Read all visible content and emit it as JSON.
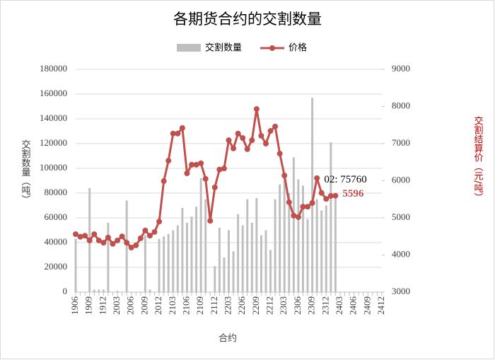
{
  "chart_data": {
    "type": "bar-line",
    "title": "各期货合约的交割数量",
    "x_label": "合约",
    "y_label": "交割数量（吨）",
    "y2_label": "交割结算价（元/吨）",
    "categories": [
      "1906",
      null,
      null,
      "1909",
      null,
      null,
      "1912",
      null,
      null,
      "2003",
      null,
      null,
      "2006",
      null,
      null,
      "2009",
      null,
      null,
      "2012",
      null,
      null,
      "2103",
      null,
      null,
      "2106",
      null,
      null,
      "2109",
      null,
      null,
      "2112",
      null,
      null,
      "2203",
      null,
      null,
      "2206",
      null,
      null,
      "2209",
      null,
      null,
      "2212",
      null,
      null,
      "2303",
      null,
      null,
      "2306",
      null,
      null,
      "2309",
      null,
      null,
      "2312",
      null,
      null,
      "2403",
      null,
      null,
      "2406",
      null,
      null,
      "2409",
      null,
      null,
      "2412"
    ],
    "series": [
      {
        "name": "交割数量",
        "kind": "bar",
        "color": "#bfbfbf",
        "values": [
          43000,
          null,
          null,
          84000,
          2000,
          2000,
          2000,
          56000,
          null,
          1000,
          null,
          74000,
          null,
          null,
          null,
          46000,
          2000,
          null,
          43000,
          45000,
          47000,
          50000,
          54000,
          68000,
          56000,
          61000,
          69000,
          92000,
          75000,
          null,
          21000,
          52000,
          28000,
          50000,
          33000,
          63000,
          54000,
          75000,
          56000,
          76000,
          46000,
          50000,
          34000,
          75000,
          87000,
          94000,
          80000,
          109000,
          91000,
          86000,
          59000,
          157000,
          75000,
          66000,
          70000,
          121000,
          75760,
          null,
          null,
          null,
          null,
          null,
          null,
          null,
          null,
          null,
          null
        ],
        "value_labels": [
          null,
          null,
          null,
          null,
          null,
          null,
          null,
          null,
          null,
          null,
          null,
          null,
          null,
          null,
          null,
          null,
          null,
          null,
          null,
          null,
          null,
          null,
          null,
          null,
          null,
          null,
          null,
          null,
          null,
          null,
          null,
          null,
          null,
          null,
          null,
          null,
          null,
          null,
          null,
          null,
          null,
          null,
          null,
          null,
          null,
          null,
          null,
          null,
          null,
          null,
          null,
          null,
          null,
          null,
          null,
          null,
          "02: 75760",
          null,
          null,
          null,
          null,
          null,
          null,
          null,
          null,
          null,
          null
        ]
      },
      {
        "name": "价格",
        "kind": "line",
        "axis": "y2",
        "color": "#c0504d",
        "values": [
          4560,
          4490,
          4520,
          4390,
          4560,
          4390,
          4330,
          4470,
          4300,
          4390,
          4500,
          4330,
          4200,
          4260,
          4450,
          4660,
          4520,
          4620,
          4900,
          5990,
          6540,
          7270,
          7270,
          7420,
          6200,
          6430,
          6430,
          6470,
          6050,
          4920,
          5820,
          6300,
          6330,
          7090,
          6870,
          7270,
          7150,
          6850,
          7090,
          7930,
          7210,
          7000,
          7340,
          7460,
          6730,
          6140,
          5420,
          5060,
          5020,
          5300,
          5300,
          5400,
          6070,
          5670,
          5510,
          5590,
          5596,
          null,
          null,
          null,
          null,
          null,
          null,
          null,
          null,
          null,
          null
        ],
        "value_labels": [
          null,
          null,
          null,
          null,
          null,
          null,
          null,
          null,
          null,
          null,
          null,
          null,
          null,
          null,
          null,
          null,
          null,
          null,
          null,
          null,
          null,
          null,
          null,
          null,
          null,
          null,
          null,
          null,
          null,
          null,
          null,
          null,
          null,
          null,
          null,
          null,
          null,
          null,
          null,
          null,
          null,
          null,
          null,
          null,
          null,
          null,
          null,
          null,
          null,
          null,
          null,
          null,
          null,
          null,
          null,
          null,
          "5596",
          null,
          null,
          null,
          null,
          null,
          null,
          null,
          null,
          null,
          null
        ]
      }
    ],
    "ylim": [
      0,
      180000
    ],
    "yticks": [
      0,
      20000,
      40000,
      60000,
      80000,
      100000,
      120000,
      140000,
      160000,
      180000
    ],
    "y2lim": [
      3000,
      9000
    ],
    "y2ticks": [
      3000,
      4000,
      5000,
      6000,
      7000,
      8000,
      9000
    ],
    "grid": true,
    "legend": "top"
  }
}
